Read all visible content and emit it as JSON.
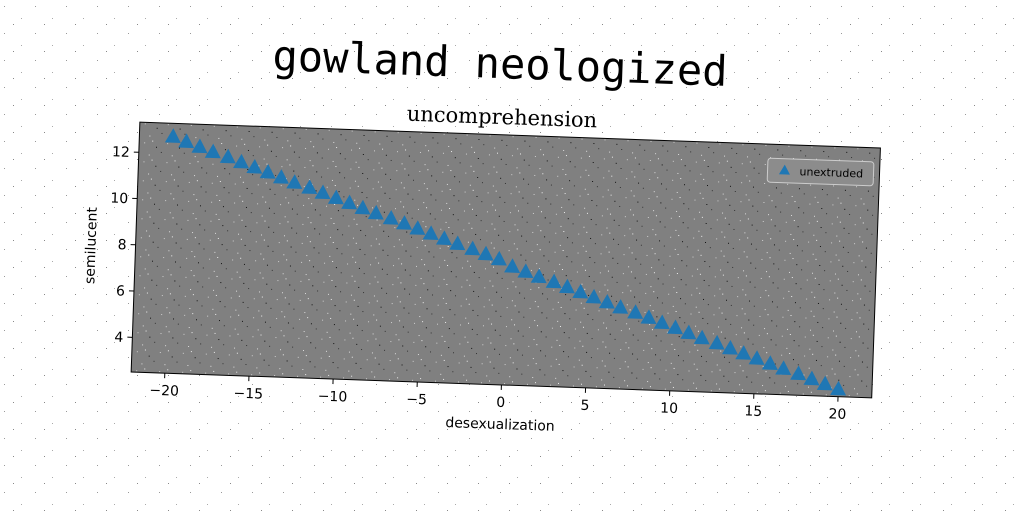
{
  "chart_data": {
    "type": "scatter",
    "suptitle": "gowland neologized",
    "title": "uncomprehension",
    "xlabel": "desexualization",
    "ylabel": "semilucent",
    "xlim": [
      -22,
      22
    ],
    "ylim": [
      2.5,
      13.3
    ],
    "xticks": [
      -20,
      -15,
      -10,
      -5,
      0,
      5,
      10,
      15,
      20
    ],
    "xtick_labels": [
      "−20",
      "−15",
      "−10",
      "−5",
      "0",
      "5",
      "10",
      "15",
      "20"
    ],
    "yticks": [
      4,
      6,
      8,
      10,
      12
    ],
    "ytick_labels": [
      "4",
      "6",
      "8",
      "10",
      "12"
    ],
    "grid": false,
    "legend_position": "top-right",
    "background": "#808080",
    "series": [
      {
        "name": "unextruded",
        "marker": "triangle",
        "color": "#1f77b4",
        "x": [
          -20.0,
          -19.2,
          -18.4,
          -17.6,
          -16.7,
          -15.9,
          -15.1,
          -14.3,
          -13.5,
          -12.7,
          -11.8,
          -11.0,
          -10.2,
          -9.4,
          -8.6,
          -7.8,
          -6.9,
          -6.1,
          -5.3,
          -4.5,
          -3.7,
          -2.9,
          -2.0,
          -1.2,
          -0.4,
          0.4,
          1.2,
          2.0,
          2.9,
          3.7,
          4.5,
          5.3,
          6.1,
          6.9,
          7.8,
          8.6,
          9.4,
          10.2,
          11.0,
          11.8,
          12.7,
          13.5,
          14.3,
          15.1,
          15.9,
          16.7,
          17.6,
          18.4,
          19.2,
          20.0
        ],
        "y": [
          12.7,
          12.5,
          12.3,
          12.1,
          11.9,
          11.7,
          11.5,
          11.3,
          11.1,
          10.9,
          10.7,
          10.5,
          10.3,
          10.1,
          9.9,
          9.7,
          9.5,
          9.3,
          9.1,
          8.9,
          8.7,
          8.5,
          8.3,
          8.1,
          7.9,
          7.6,
          7.4,
          7.2,
          7.0,
          6.8,
          6.6,
          6.4,
          6.2,
          6.0,
          5.8,
          5.6,
          5.4,
          5.2,
          5.0,
          4.8,
          4.6,
          4.4,
          4.2,
          4.0,
          3.8,
          3.6,
          3.4,
          3.2,
          3.0,
          2.8
        ]
      }
    ]
  }
}
